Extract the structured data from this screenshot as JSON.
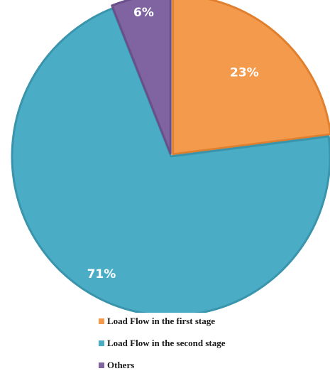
{
  "chart_data": {
    "type": "pie",
    "title": "",
    "slices": [
      {
        "label": "Load Flow in the first stage",
        "value": 23,
        "display": "23%",
        "color": "#F39A4C",
        "edge": "#E0802E"
      },
      {
        "label": "Load Flow in the second stage",
        "value": 71,
        "display": "71%",
        "color": "#4AACC5",
        "edge": "#3A94AC"
      },
      {
        "label": "Others",
        "value": 6,
        "display": "6%",
        "color": "#8064A2",
        "edge": "#6A5088"
      }
    ],
    "legend_position": "bottom"
  },
  "legend": {
    "items": [
      {
        "label": "Load Flow in the first stage"
      },
      {
        "label": "Load Flow in the second stage"
      },
      {
        "label": "Others"
      }
    ]
  }
}
